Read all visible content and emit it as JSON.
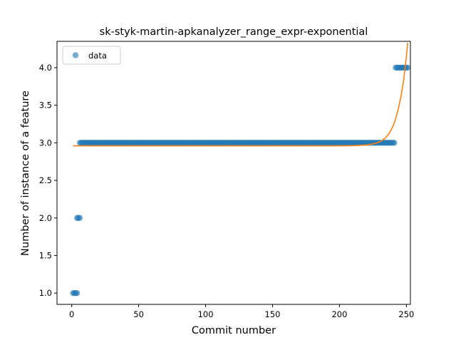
{
  "chart_data": {
    "type": "scatter",
    "title": "sk-styk-martin-apkanalyzer_range_expr-exponential",
    "xlabel": "Commit number",
    "ylabel": "Number of instance of a feature",
    "xlim": [
      -11,
      253
    ],
    "ylim": [
      0.85,
      4.35
    ],
    "x_ticks": [
      0,
      50,
      100,
      150,
      200,
      250
    ],
    "y_ticks": [
      1.0,
      1.5,
      2.0,
      2.5,
      3.0,
      3.5,
      4.0
    ],
    "x_tick_labels": [
      "0",
      "50",
      "100",
      "150",
      "200",
      "250"
    ],
    "y_tick_labels": [
      "1.0",
      "1.5",
      "2.0",
      "2.5",
      "3.0",
      "3.5",
      "4.0"
    ],
    "legend": {
      "position": "top-left",
      "entries": [
        "data"
      ]
    },
    "grid": false,
    "series": [
      {
        "name": "data",
        "kind": "scatter",
        "color": "#1f77b4",
        "segments": [
          {
            "x_start": 1,
            "x_end": 4,
            "y": 1.0
          },
          {
            "x_start": 4,
            "x_end": 6,
            "y": 2.0
          },
          {
            "x_start": 6,
            "x_end": 241,
            "y": 3.0
          },
          {
            "x_start": 242,
            "x_end": 251,
            "y": 4.0
          }
        ]
      },
      {
        "kind": "line",
        "color": "#ff7f0e",
        "function": "exponential",
        "x": [
          1,
          150,
          200,
          210,
          215,
          220,
          225,
          228,
          231,
          234,
          237,
          240,
          242,
          244,
          246,
          248,
          250,
          251
        ],
        "y": [
          2.96,
          2.96,
          2.96,
          2.962,
          2.966,
          2.972,
          2.985,
          3.0,
          3.02,
          3.06,
          3.12,
          3.22,
          3.32,
          3.45,
          3.62,
          3.84,
          4.15,
          4.33
        ]
      }
    ]
  }
}
